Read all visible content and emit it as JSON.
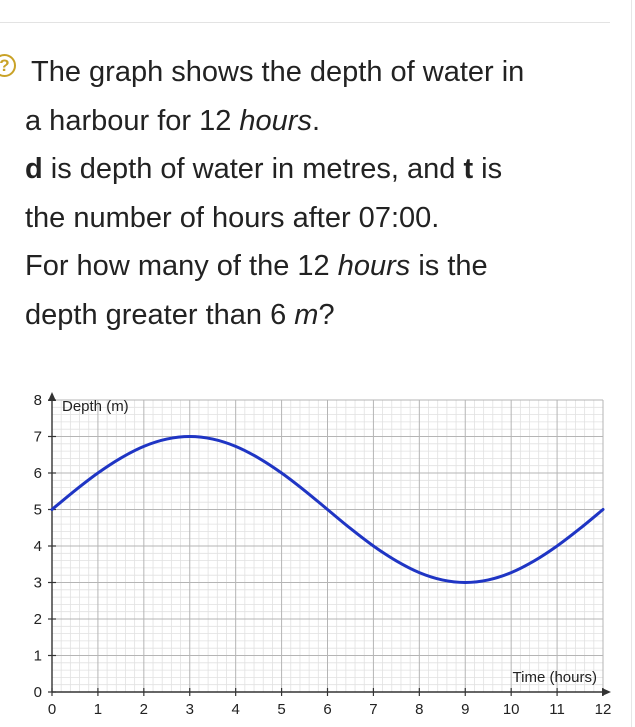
{
  "question": {
    "help_icon": "question-mark-circle-icon",
    "line1": "The graph shows the depth of water in",
    "line2_a": "a harbour for 12 ",
    "line2_b": "hours",
    "line2_c": ".",
    "line3_a": "d",
    "line3_b": " is depth of water in metres, and ",
    "line3_c": "t",
    "line3_d": " is",
    "line4": "the number of hours after 07:00.",
    "line5_a": "For how many of the 12 ",
    "line5_b": "hours",
    "line5_c": " is the",
    "line6_a": "depth greater than 6 ",
    "line6_b": "m",
    "line6_c": "?"
  },
  "chart_data": {
    "type": "line",
    "xlabel": "Time (hours)",
    "ylabel": "Depth (m)",
    "xlim": [
      0,
      12
    ],
    "ylim": [
      0,
      8
    ],
    "x_ticks": [
      0,
      1,
      2,
      3,
      4,
      5,
      6,
      7,
      8,
      9,
      10,
      11,
      12
    ],
    "y_ticks": [
      0,
      1,
      2,
      3,
      4,
      5,
      6,
      7,
      8
    ],
    "grid": true,
    "series": [
      {
        "x": [
          0,
          0.5,
          1,
          1.5,
          2,
          2.5,
          3,
          3.5,
          4,
          4.5,
          5,
          5.5,
          6,
          6.5,
          7,
          7.5,
          8,
          8.5,
          9,
          9.5,
          10,
          10.5,
          11,
          11.5,
          12
        ],
        "values": [
          5.0,
          5.52,
          6.0,
          6.41,
          6.73,
          6.93,
          7.0,
          6.93,
          6.73,
          6.41,
          6.0,
          5.52,
          5.0,
          4.48,
          4.0,
          3.59,
          3.27,
          3.07,
          3.0,
          3.07,
          3.27,
          3.59,
          4.0,
          4.48,
          5.0
        ],
        "color": "#1f35c4"
      }
    ],
    "colors": {
      "grid_major": "#b5b5b5",
      "grid_minor": "#e1e1e1",
      "axis": "#333333"
    }
  }
}
